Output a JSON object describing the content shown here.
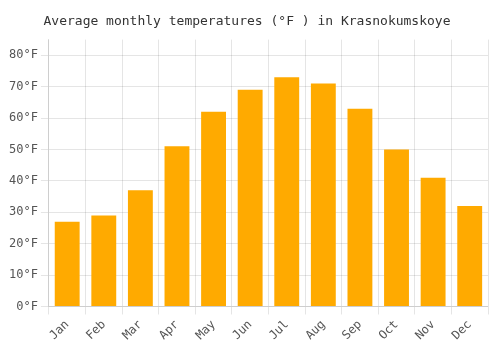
{
  "chart_data": {
    "type": "bar",
    "title": "Average monthly temperatures (°F ) in Krasnokumskoye",
    "categories": [
      "Jan",
      "Feb",
      "Mar",
      "Apr",
      "May",
      "Jun",
      "Jul",
      "Aug",
      "Sep",
      "Oct",
      "Nov",
      "Dec"
    ],
    "values": [
      27,
      29,
      37,
      51,
      62,
      69,
      73,
      71,
      63,
      50,
      41,
      32
    ],
    "color": "#FFAA00",
    "ylim": [
      0,
      85
    ],
    "yticks": [
      {
        "value": 0,
        "label": "0°F"
      },
      {
        "value": 10,
        "label": "10°F"
      },
      {
        "value": 20,
        "label": "20°F"
      },
      {
        "value": 30,
        "label": "30°F"
      },
      {
        "value": 40,
        "label": "40°F"
      },
      {
        "value": 50,
        "label": "50°F"
      },
      {
        "value": 60,
        "label": "60°F"
      },
      {
        "value": 70,
        "label": "70°F"
      },
      {
        "value": 80,
        "label": "80°F"
      }
    ],
    "grid": true
  }
}
